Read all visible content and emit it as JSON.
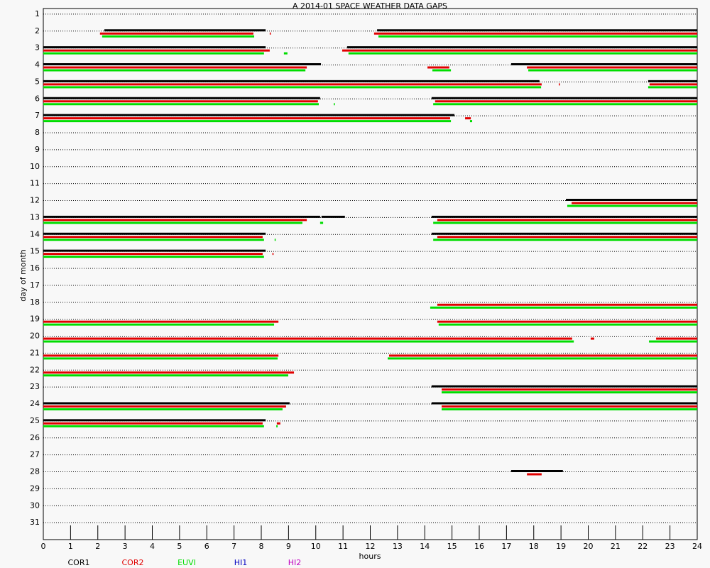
{
  "chart_data": {
    "type": "gaps",
    "title": "A  2014-01 SPACE WEATHER DATA GAPS",
    "x_label": "hours",
    "y_label": "day of month",
    "xlim": [
      0,
      24
    ],
    "xticks": [
      0,
      1,
      2,
      3,
      4,
      5,
      6,
      7,
      8,
      9,
      10,
      11,
      12,
      13,
      14,
      15,
      16,
      17,
      18,
      19,
      20,
      21,
      22,
      23,
      24
    ],
    "ylim": [
      0.67,
      32
    ],
    "yticks": [
      1,
      2,
      3,
      4,
      5,
      6,
      7,
      8,
      9,
      10,
      11,
      12,
      13,
      14,
      15,
      16,
      17,
      18,
      19,
      20,
      21,
      22,
      23,
      24,
      25,
      26,
      27,
      28,
      29,
      30,
      31
    ],
    "grid": true,
    "series": [
      {
        "name": "COR1",
        "color": "#000000",
        "gaps": [
          [
            2,
            2.24,
            8.16
          ],
          [
            2,
            12.25,
            24
          ],
          [
            3,
            0,
            8.16
          ],
          [
            3,
            11.15,
            24
          ],
          [
            4,
            0,
            10.19
          ],
          [
            4,
            17.17,
            24
          ],
          [
            5,
            0,
            18.21
          ],
          [
            5,
            22.2,
            24
          ],
          [
            6,
            0,
            10.16
          ],
          [
            6,
            14.25,
            24
          ],
          [
            7,
            0,
            15.09
          ],
          [
            12,
            19.18,
            24
          ],
          [
            13,
            0,
            10.16
          ],
          [
            13,
            10.21,
            11.07
          ],
          [
            13,
            14.25,
            24
          ],
          [
            14,
            0,
            8.16
          ],
          [
            14,
            14.25,
            24
          ],
          [
            15,
            0,
            8.16
          ],
          [
            23,
            14.25,
            24
          ],
          [
            24,
            0,
            9.04
          ],
          [
            24,
            14.25,
            24
          ],
          [
            25,
            0,
            8.16
          ],
          [
            28,
            17.17,
            19.07
          ]
        ]
      },
      {
        "name": "COR2",
        "color": "#e00000",
        "gaps": [
          [
            2,
            2.08,
            7.71
          ],
          [
            2,
            8.31,
            8.35
          ],
          [
            2,
            12.14,
            24
          ],
          [
            3,
            0,
            8.31
          ],
          [
            3,
            10.97,
            24
          ],
          [
            4,
            0,
            9.67
          ],
          [
            4,
            14.1,
            14.9
          ],
          [
            4,
            17.75,
            24
          ],
          [
            5,
            0,
            18.29
          ],
          [
            5,
            18.92,
            18.96
          ],
          [
            5,
            22.25,
            24
          ],
          [
            6,
            0,
            10.08
          ],
          [
            6,
            14.38,
            24
          ],
          [
            7,
            0,
            14.93
          ],
          [
            7,
            15.48,
            15.69
          ],
          [
            12,
            19.39,
            24
          ],
          [
            13,
            0,
            9.67
          ],
          [
            13,
            14.46,
            24
          ],
          [
            14,
            0,
            8.05
          ],
          [
            14,
            14.46,
            24
          ],
          [
            15,
            0,
            8.05
          ],
          [
            15,
            8.41,
            8.44
          ],
          [
            18,
            14.46,
            24
          ],
          [
            19,
            0,
            8.63
          ],
          [
            19,
            14.46,
            24
          ],
          [
            20,
            0,
            19.41
          ],
          [
            20,
            20.09,
            20.22
          ],
          [
            20,
            22.49,
            24
          ],
          [
            21,
            0,
            8.63
          ],
          [
            21,
            12.69,
            24
          ],
          [
            22,
            0,
            9.2
          ],
          [
            23,
            14.62,
            24
          ],
          [
            24,
            0,
            8.91
          ],
          [
            24,
            14.62,
            24
          ],
          [
            25,
            0,
            8.05
          ],
          [
            25,
            8.57,
            8.7
          ],
          [
            28,
            17.75,
            18.29
          ]
        ]
      },
      {
        "name": "EUVI",
        "color": "#00dd00",
        "gaps": [
          [
            2,
            2.16,
            7.74
          ],
          [
            2,
            12.3,
            24
          ],
          [
            3,
            0,
            8.1
          ],
          [
            3,
            8.83,
            8.96
          ],
          [
            3,
            11.2,
            24
          ],
          [
            4,
            0,
            9.62
          ],
          [
            4,
            14.28,
            14.96
          ],
          [
            4,
            17.8,
            24
          ],
          [
            5,
            0,
            18.27
          ],
          [
            5,
            22.2,
            24
          ],
          [
            6,
            0,
            10.11
          ],
          [
            6,
            10.66,
            10.7
          ],
          [
            6,
            14.31,
            24
          ],
          [
            7,
            0,
            14.96
          ],
          [
            7,
            15.66,
            15.74
          ],
          [
            12,
            19.23,
            24
          ],
          [
            13,
            0,
            9.51
          ],
          [
            13,
            10.16,
            10.27
          ],
          [
            13,
            14.31,
            24
          ],
          [
            14,
            0,
            8.1
          ],
          [
            14,
            8.49,
            8.52
          ],
          [
            14,
            14.31,
            24
          ],
          [
            15,
            0,
            8.1
          ],
          [
            18,
            14.2,
            24
          ],
          [
            19,
            0,
            8.47
          ],
          [
            19,
            14.51,
            24
          ],
          [
            20,
            0,
            19.47
          ],
          [
            20,
            22.23,
            24
          ],
          [
            21,
            0,
            8.6
          ],
          [
            21,
            12.64,
            24
          ],
          [
            22,
            0,
            8.99
          ],
          [
            23,
            14.62,
            24
          ],
          [
            24,
            0,
            8.78
          ],
          [
            24,
            14.62,
            24
          ],
          [
            25,
            0,
            8.1
          ],
          [
            25,
            8.55,
            8.6
          ]
        ]
      },
      {
        "name": "HI1",
        "color": "#0000c0",
        "gaps": []
      },
      {
        "name": "HI2",
        "color": "#c000c0",
        "gaps": []
      }
    ]
  }
}
